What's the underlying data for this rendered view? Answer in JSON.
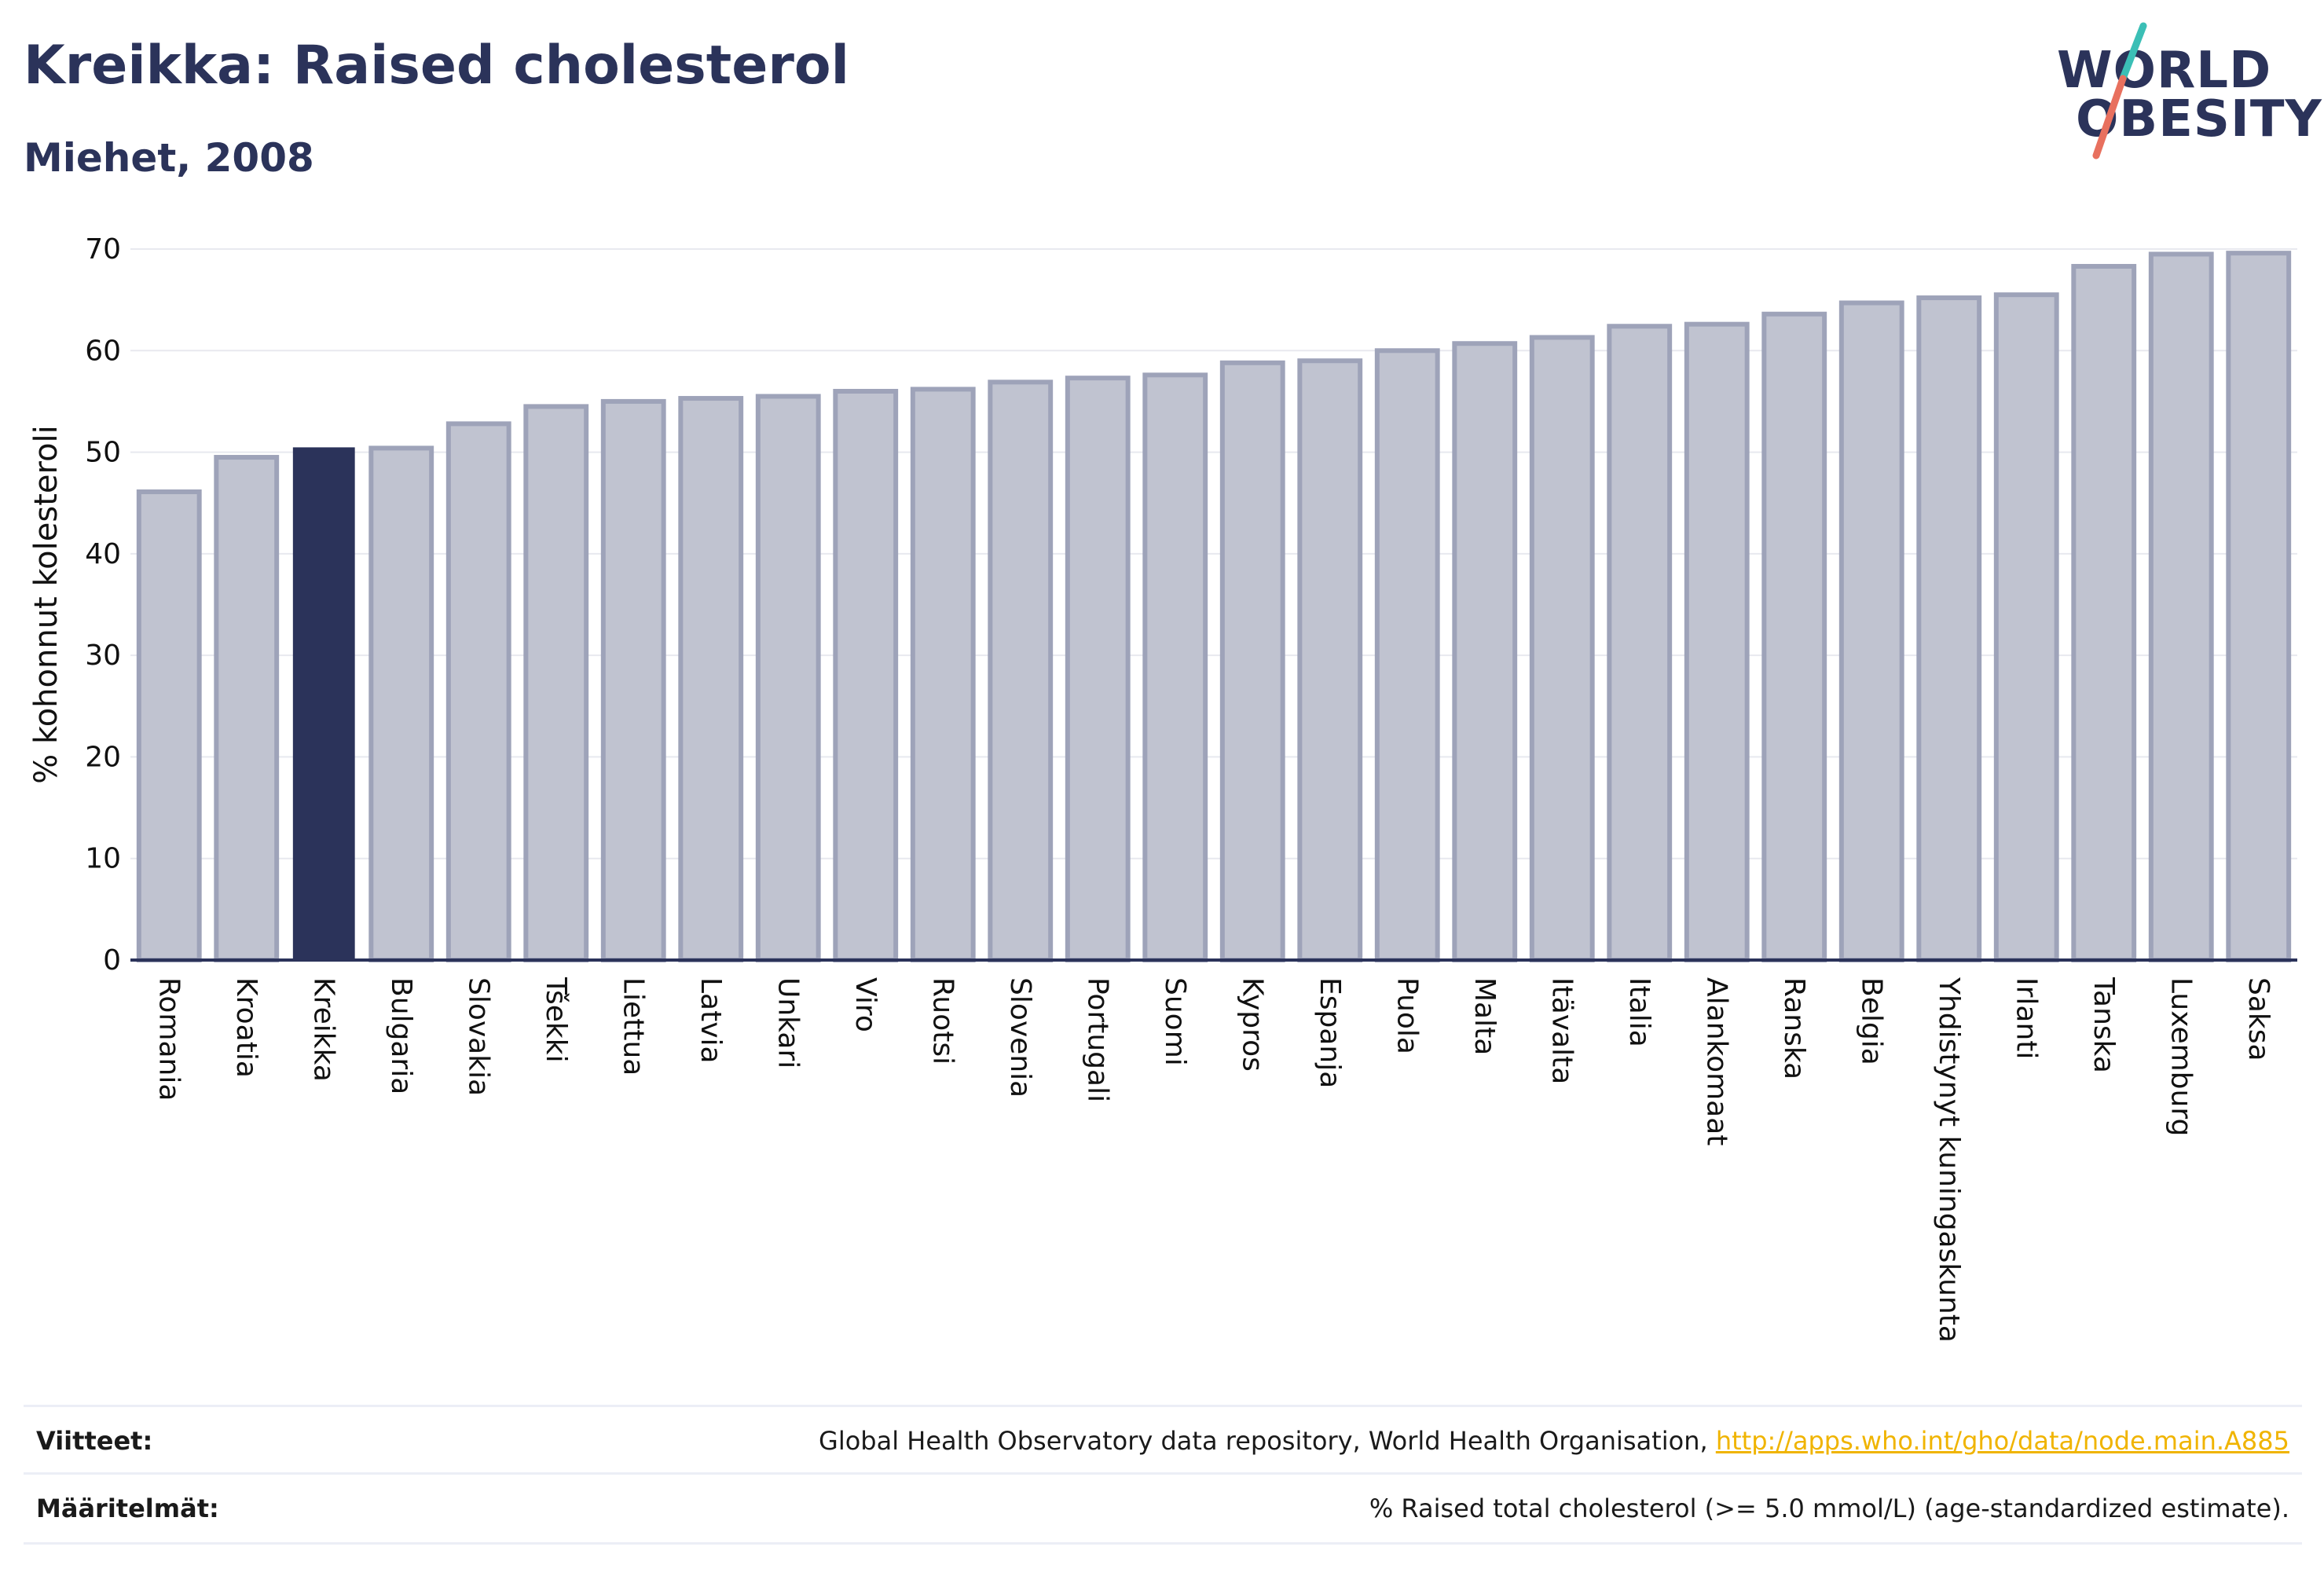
{
  "header": {
    "title": "Kreikka: Raised cholesterol",
    "subtitle": "Miehet, 2008"
  },
  "logo": {
    "line1": "WORLD",
    "line2": "OBESITY",
    "icon": "world-obesity-logo",
    "slash_colors": [
      "#3bbfb6",
      "#e8705e"
    ]
  },
  "colors": {
    "bar": "#c0c3d0",
    "bar_outline": "#9ea3b9",
    "highlight": "#2b335a",
    "grid": "#e8e9ef",
    "axis": "#2b335a",
    "text": "#111111",
    "link": "#f0b400"
  },
  "chart_data": {
    "type": "bar",
    "title": "Kreikka: Raised cholesterol",
    "subtitle": "Miehet, 2008",
    "ylabel": "% kohonnut kolesteroli",
    "xlabel": "",
    "ylim": [
      0,
      70
    ],
    "yticks": [
      0,
      10,
      20,
      30,
      40,
      50,
      60,
      70
    ],
    "grid": true,
    "highlight_category": "Kreikka",
    "categories": [
      "Romania",
      "Kroatia",
      "Kreikka",
      "Bulgaria",
      "Slovakia",
      "Tšekki",
      "Liettua",
      "Latvia",
      "Unkari",
      "Viro",
      "Ruotsi",
      "Slovenia",
      "Portugali",
      "Suomi",
      "Kypros",
      "Espanja",
      "Puola",
      "Malta",
      "Itävalta",
      "Italia",
      "Alankomaat",
      "Ranska",
      "Belgia",
      "Yhdistynyt kuningaskunta",
      "Irlanti",
      "Tanska",
      "Luxemburg",
      "Saksa"
    ],
    "values": [
      46.1,
      49.5,
      50.4,
      50.4,
      52.8,
      54.5,
      55.0,
      55.3,
      55.5,
      56.0,
      56.2,
      56.9,
      57.3,
      57.6,
      58.8,
      59.0,
      60.0,
      60.7,
      61.3,
      62.4,
      62.6,
      63.6,
      64.7,
      65.2,
      65.5,
      68.3,
      69.5,
      69.6
    ]
  },
  "footer": {
    "refs_label": "Viitteet:",
    "refs_text": "Global Health Observatory data repository, World Health Organisation, ",
    "refs_link": "http://apps.who.int/gho/data/node.main.A885",
    "defs_label": "Määritelmät:",
    "defs_text": "% Raised total cholesterol (>= 5.0 mmol/L) (age-standardized estimate)."
  }
}
